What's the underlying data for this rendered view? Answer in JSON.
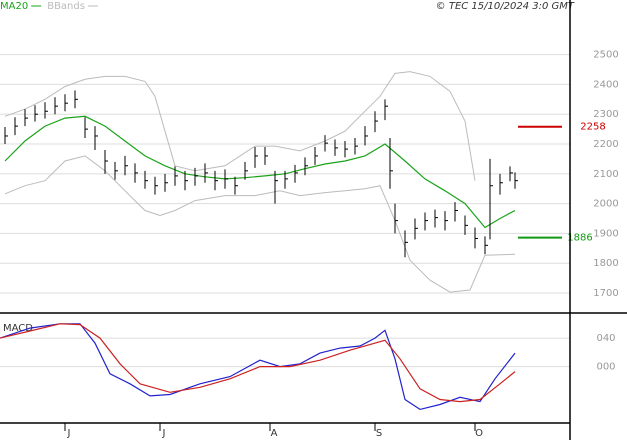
{
  "chart_data": [
    {
      "type": "ohlc",
      "source": "© TEC 15/10/2024 3:0 GMT",
      "x": [
        1,
        3,
        5,
        7,
        9,
        11,
        13,
        15,
        17,
        19,
        21,
        23,
        25,
        27,
        29,
        31,
        33,
        35,
        37,
        39,
        41,
        43,
        45,
        47,
        49,
        51,
        53,
        55,
        57,
        59,
        61,
        63,
        65,
        67,
        69,
        71,
        73,
        75,
        77,
        78,
        79,
        81,
        83,
        85,
        87,
        89,
        91,
        93,
        95,
        97,
        98,
        100,
        102,
        103
      ],
      "high": [
        2257,
        2290,
        2317,
        2330,
        2340,
        2357,
        2367,
        2380,
        2290,
        2260,
        2180,
        2140,
        2160,
        2135,
        2110,
        2090,
        2100,
        2125,
        2110,
        2120,
        2135,
        2110,
        2115,
        2090,
        2140,
        2190,
        2190,
        2110,
        2110,
        2130,
        2155,
        2190,
        2230,
        2215,
        2210,
        2220,
        2260,
        2310,
        2350,
        2220,
        2000,
        1910,
        1950,
        1970,
        1980,
        1975,
        2005,
        1960,
        1920,
        1890,
        2150,
        2100,
        2125,
        2105
      ],
      "low": [
        2200,
        2230,
        2260,
        2275,
        2285,
        2300,
        2310,
        2320,
        2220,
        2180,
        2100,
        2080,
        2095,
        2070,
        2050,
        2030,
        2040,
        2060,
        2045,
        2060,
        2070,
        2045,
        2050,
        2030,
        2080,
        2120,
        2130,
        2000,
        2050,
        2070,
        2095,
        2130,
        2175,
        2160,
        2155,
        2165,
        2195,
        2240,
        2280,
        2050,
        1900,
        1820,
        1880,
        1910,
        1920,
        1910,
        1940,
        1895,
        1850,
        1830,
        1880,
        2030,
        2075,
        2050
      ],
      "close": [
        2227,
        2260,
        2287,
        2300,
        2310,
        2327,
        2337,
        2350,
        2250,
        2227,
        2143,
        2110,
        2127,
        2103,
        2077,
        2060,
        2070,
        2093,
        2077,
        2093,
        2103,
        2077,
        2083,
        2060,
        2110,
        2160,
        2160,
        2077,
        2083,
        2103,
        2127,
        2160,
        2203,
        2187,
        2183,
        2193,
        2227,
        2277,
        2327,
        2110,
        1943,
        1870,
        1917,
        1943,
        1953,
        1943,
        1977,
        1927,
        1883,
        1860,
        2060,
        2070,
        2103,
        2077
      ],
      "bar_color": "#000",
      "series": [
        {
          "name": "MA20",
          "color": "#1aa31a",
          "x": [
            1,
            5,
            9,
            13,
            17,
            21,
            25,
            29,
            33,
            37,
            41,
            45,
            49,
            53,
            57,
            61,
            65,
            69,
            73,
            77,
            81,
            85,
            89,
            93,
            97,
            100,
            103
          ],
          "values": [
            2143,
            2210,
            2260,
            2287,
            2293,
            2260,
            2210,
            2160,
            2127,
            2100,
            2090,
            2083,
            2087,
            2093,
            2100,
            2117,
            2133,
            2143,
            2160,
            2200,
            2143,
            2083,
            2043,
            2000,
            1920,
            1950,
            1977
          ]
        }
      ],
      "bands": {
        "name": "BBands",
        "color": "#bbbbbb",
        "upper": {
          "x": [
            1,
            5,
            9,
            13,
            17,
            21,
            25,
            29,
            31,
            33,
            35,
            39,
            45,
            51,
            55,
            60,
            65,
            69,
            73,
            76,
            79,
            82,
            86,
            90,
            93,
            95
          ],
          "values": [
            2293,
            2317,
            2350,
            2393,
            2417,
            2427,
            2427,
            2410,
            2360,
            2243,
            2127,
            2110,
            2127,
            2193,
            2193,
            2177,
            2210,
            2243,
            2310,
            2360,
            2437,
            2443,
            2427,
            2377,
            2277,
            2077
          ]
        },
        "lower": {
          "x": [
            1,
            5,
            9,
            13,
            17,
            21,
            25,
            29,
            32,
            35,
            39,
            45,
            51,
            56,
            60,
            65,
            69,
            73,
            76,
            79,
            82,
            86,
            90,
            94,
            97,
            103
          ],
          "values": [
            2033,
            2060,
            2077,
            2143,
            2160,
            2110,
            2043,
            1977,
            1960,
            1977,
            2010,
            2027,
            2027,
            2043,
            2027,
            2037,
            2043,
            2050,
            2060,
            1943,
            1810,
            1743,
            1703,
            1710,
            1827,
            1830
          ]
        }
      },
      "levels": [
        {
          "value": 2258,
          "color": "#cc0000"
        },
        {
          "value": 1886,
          "color": "#119911"
        }
      ],
      "xlim": [
        0,
        114
      ],
      "ylim": [
        1643,
        2643
      ],
      "yticks": [
        1700,
        1800,
        1900,
        2000,
        2100,
        2200,
        2300,
        2400,
        2500
      ],
      "grid": true
    },
    {
      "type": "line",
      "title": "MACD",
      "series": [
        {
          "color": "#2222cc",
          "x": [
            0,
            6,
            12,
            16,
            19,
            22,
            26,
            30,
            34,
            40,
            46,
            52,
            56,
            60,
            64,
            68,
            72,
            75,
            77,
            79,
            81,
            84,
            88,
            92,
            96,
            99,
            103
          ],
          "values": [
            40,
            54,
            60,
            60,
            33,
            -10,
            -24,
            -41,
            -39,
            -24,
            -14,
            9,
            0,
            4,
            19,
            26,
            29,
            40,
            51,
            11,
            -46,
            -60,
            -53,
            -43,
            -49,
            -17,
            19
          ]
        },
        {
          "color": "#cc2222",
          "x": [
            0,
            6,
            12,
            16,
            20,
            24,
            28,
            34,
            40,
            46,
            52,
            58,
            64,
            70,
            77,
            80,
            84,
            88,
            92,
            96,
            100,
            103
          ],
          "values": [
            40,
            50,
            60,
            59,
            40,
            4,
            -24,
            -36,
            -29,
            -17,
            0,
            0,
            9,
            23,
            37,
            11,
            -31,
            -46,
            -49,
            -46,
            -24,
            -7
          ]
        }
      ],
      "xlim": [
        0,
        114
      ],
      "ylim": [
        -79,
        71
      ],
      "yticks": [
        {
          "value": 40,
          "label": "040"
        },
        {
          "value": 0,
          "label": "000"
        }
      ],
      "grid": true,
      "xticks": [
        {
          "value": 13,
          "label": "J"
        },
        {
          "value": 32,
          "label": "J"
        },
        {
          "value": 54,
          "label": "A"
        },
        {
          "value": 75,
          "label": "S"
        },
        {
          "value": 95,
          "label": "O"
        }
      ]
    }
  ]
}
